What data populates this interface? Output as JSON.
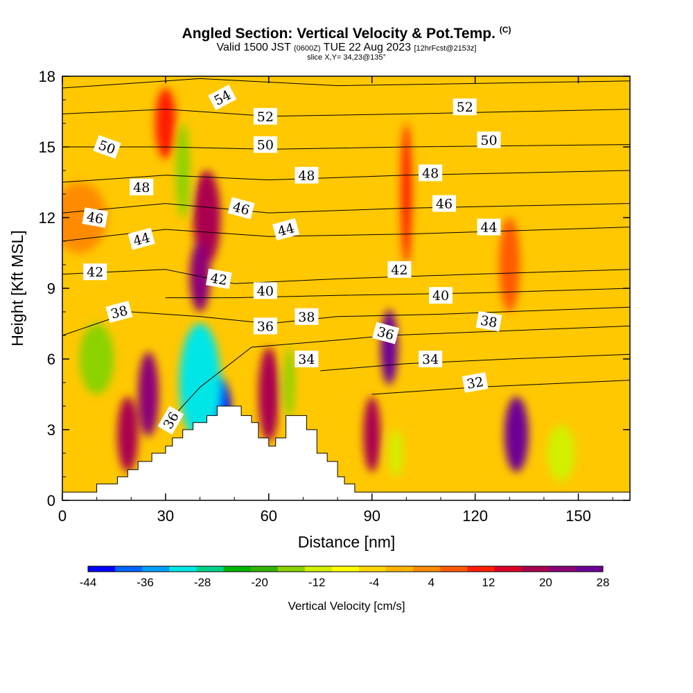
{
  "chart_data": {
    "type": "heatmap",
    "title": "Angled Section: Vertical Velocity & Pot.Temp.",
    "title_unit": "(C)",
    "subtitle_pre": "Valid 1500 JST",
    "subtitle_z": "(0600Z)",
    "subtitle_post": "TUE 22 Aug 2023",
    "subtitle_fcst": "[12hrFcst@2153z]",
    "slice": "slice X,Y= 34,23@135°",
    "xlabel": "Distance [nm]",
    "ylabel": "Height [Kft MSL]",
    "xlim": [
      0,
      165
    ],
    "ylim": [
      0,
      18
    ],
    "x_ticks": [
      "0",
      "30",
      "60",
      "90",
      "120",
      "150"
    ],
    "y_ticks": [
      "0",
      "3",
      "6",
      "9",
      "12",
      "15",
      "18"
    ],
    "colorbar": {
      "label": "Vertical Velocity [cm/s]",
      "ticks": [
        "-44",
        "-36",
        "-28",
        "-20",
        "-12",
        "-4",
        "4",
        "12",
        "20",
        "28"
      ],
      "colors": [
        "#0000ff",
        "#0064ff",
        "#00a0ff",
        "#00e6e6",
        "#00d28c",
        "#00b400",
        "#32b400",
        "#8cd200",
        "#d2f000",
        "#ffff00",
        "#ffd700",
        "#ffb400",
        "#ff8c00",
        "#ff5a00",
        "#ff1e00",
        "#dc0028",
        "#aa0050",
        "#8c0078",
        "#6e0096"
      ]
    },
    "terrain_profile": [
      [
        0,
        0.35
      ],
      [
        10,
        0.35
      ],
      [
        10,
        0.7
      ],
      [
        16,
        0.7
      ],
      [
        16,
        1
      ],
      [
        19,
        1
      ],
      [
        19,
        1.3
      ],
      [
        22,
        1.3
      ],
      [
        22,
        1.65
      ],
      [
        26,
        1.65
      ],
      [
        26,
        2
      ],
      [
        30,
        2
      ],
      [
        30,
        2.3
      ],
      [
        32,
        2.3
      ],
      [
        32,
        2.65
      ],
      [
        35,
        2.65
      ],
      [
        35,
        3
      ],
      [
        38,
        3
      ],
      [
        38,
        3.3
      ],
      [
        42,
        3.3
      ],
      [
        42,
        3.6
      ],
      [
        45,
        3.6
      ],
      [
        45,
        4
      ],
      [
        52,
        4
      ],
      [
        52,
        3.6
      ],
      [
        55,
        3.6
      ],
      [
        55,
        3.3
      ],
      [
        57,
        3.3
      ],
      [
        57,
        2.65
      ],
      [
        60,
        2.65
      ],
      [
        60,
        2.3
      ],
      [
        62,
        2.3
      ],
      [
        62,
        2.65
      ],
      [
        65,
        2.65
      ],
      [
        65,
        3.6
      ],
      [
        71,
        3.6
      ],
      [
        71,
        3
      ],
      [
        74,
        3
      ],
      [
        74,
        2
      ],
      [
        77,
        2
      ],
      [
        77,
        1.65
      ],
      [
        80,
        1.65
      ],
      [
        80,
        1
      ],
      [
        82,
        1
      ],
      [
        82,
        0.7
      ],
      [
        85,
        0.7
      ],
      [
        85,
        0.35
      ],
      [
        165,
        0.35
      ]
    ],
    "velocity_cells": [
      {
        "x": 45,
        "y": 3.8,
        "sx": 4,
        "sy": 1.5,
        "v": -42
      },
      {
        "x": 40,
        "y": 5,
        "sx": 6,
        "sy": 2.5,
        "v": -30
      },
      {
        "x": 42,
        "y": 12,
        "sx": 4,
        "sy": 2,
        "v": 20
      },
      {
        "x": 40,
        "y": 9.5,
        "sx": 3,
        "sy": 1.5,
        "v": 24
      },
      {
        "x": 25,
        "y": 4.5,
        "sx": 3,
        "sy": 1.8,
        "v": 24
      },
      {
        "x": 19,
        "y": 2.8,
        "sx": 3,
        "sy": 1.6,
        "v": 22
      },
      {
        "x": 60,
        "y": 4.5,
        "sx": 3,
        "sy": 2,
        "v": 20
      },
      {
        "x": 90,
        "y": 2.8,
        "sx": 2.5,
        "sy": 1.6,
        "v": 20
      },
      {
        "x": 95,
        "y": 6.5,
        "sx": 2.5,
        "sy": 1.6,
        "v": 28
      },
      {
        "x": 132,
        "y": 2.8,
        "sx": 3.5,
        "sy": 1.6,
        "v": 28
      },
      {
        "x": 100,
        "y": 13,
        "sx": 1.5,
        "sy": 3,
        "v": 14
      },
      {
        "x": 30,
        "y": 16,
        "sx": 3,
        "sy": 1.5,
        "v": 14
      },
      {
        "x": 35,
        "y": 14,
        "sx": 2,
        "sy": 2,
        "v": -14
      },
      {
        "x": 10,
        "y": 6,
        "sx": 5,
        "sy": 1.5,
        "v": -14
      },
      {
        "x": 66,
        "y": 5,
        "sx": 1.5,
        "sy": 1.5,
        "v": -16
      },
      {
        "x": 97,
        "y": 2,
        "sx": 2,
        "sy": 1,
        "v": -12
      },
      {
        "x": 130,
        "y": 10,
        "sx": 3,
        "sy": 2,
        "v": 10
      },
      {
        "x": 5,
        "y": 12,
        "sx": 8,
        "sy": 1.5,
        "v": 6
      },
      {
        "x": 145,
        "y": 2,
        "sx": 4,
        "sy": 1.2,
        "v": -10
      }
    ],
    "isentropes": [
      {
        "label": "32",
        "points": [
          [
            90,
            4.5
          ],
          [
            120,
            4.8
          ],
          [
            165,
            5.1
          ]
        ]
      },
      {
        "label": "34",
        "points": [
          [
            75,
            5.5
          ],
          [
            100,
            5.8
          ],
          [
            130,
            6
          ],
          [
            165,
            6.2
          ]
        ]
      },
      {
        "label": "36",
        "points": [
          [
            30,
            3.2
          ],
          [
            40,
            4.8
          ],
          [
            55,
            6.5
          ],
          [
            80,
            6.8
          ],
          [
            95,
            7
          ],
          [
            130,
            7.2
          ],
          [
            165,
            7.4
          ]
        ]
      },
      {
        "label": "38",
        "points": [
          [
            0,
            7
          ],
          [
            20,
            8
          ],
          [
            40,
            7.8
          ],
          [
            60,
            7.5
          ],
          [
            80,
            7.8
          ],
          [
            110,
            7.9
          ],
          [
            165,
            8.2
          ]
        ]
      },
      {
        "label": "40",
        "points": [
          [
            30,
            8.6
          ],
          [
            50,
            8.6
          ],
          [
            80,
            8.7
          ],
          [
            120,
            8.8
          ],
          [
            165,
            9
          ]
        ]
      },
      {
        "label": "42",
        "points": [
          [
            0,
            9.6
          ],
          [
            30,
            9.8
          ],
          [
            50,
            9.2
          ],
          [
            80,
            9.4
          ],
          [
            120,
            9.6
          ],
          [
            165,
            9.8
          ]
        ]
      },
      {
        "label": "44",
        "points": [
          [
            0,
            11
          ],
          [
            30,
            11.5
          ],
          [
            60,
            11.2
          ],
          [
            100,
            11.3
          ],
          [
            165,
            11.6
          ]
        ]
      },
      {
        "label": "46",
        "points": [
          [
            0,
            12.2
          ],
          [
            30,
            12.6
          ],
          [
            60,
            12.2
          ],
          [
            100,
            12.4
          ],
          [
            165,
            12.6
          ]
        ]
      },
      {
        "label": "48",
        "points": [
          [
            0,
            13.5
          ],
          [
            30,
            13.8
          ],
          [
            60,
            13.6
          ],
          [
            100,
            13.8
          ],
          [
            165,
            14
          ]
        ]
      },
      {
        "label": "50",
        "points": [
          [
            0,
            15
          ],
          [
            30,
            15
          ],
          [
            60,
            14.9
          ],
          [
            100,
            15
          ],
          [
            165,
            15.1
          ]
        ]
      },
      {
        "label": "52",
        "points": [
          [
            0,
            16.4
          ],
          [
            30,
            16.6
          ],
          [
            60,
            16.3
          ],
          [
            100,
            16.4
          ],
          [
            165,
            16.6
          ]
        ]
      },
      {
        "label": "54",
        "points": [
          [
            0,
            17.5
          ],
          [
            40,
            17.9
          ],
          [
            80,
            17.6
          ],
          [
            165,
            17.8
          ]
        ]
      }
    ],
    "contour_labels": [
      {
        "text": "54",
        "x": 46.5,
        "y": 17.1,
        "rot": -28
      },
      {
        "text": "52",
        "x": 59,
        "y": 16.3,
        "rot": 0
      },
      {
        "text": "52",
        "x": 117,
        "y": 16.7,
        "rot": 0
      },
      {
        "text": "50",
        "x": 13,
        "y": 15,
        "rot": 20
      },
      {
        "text": "50",
        "x": 59,
        "y": 15.1,
        "rot": 0
      },
      {
        "text": "50",
        "x": 124,
        "y": 15.3,
        "rot": 0
      },
      {
        "text": "48",
        "x": 23,
        "y": 13.3,
        "rot": 0
      },
      {
        "text": "48",
        "x": 71,
        "y": 13.8,
        "rot": 0
      },
      {
        "text": "48",
        "x": 107,
        "y": 13.9,
        "rot": 0
      },
      {
        "text": "46",
        "x": 9.5,
        "y": 12,
        "rot": 10
      },
      {
        "text": "46",
        "x": 52,
        "y": 12.4,
        "rot": 15
      },
      {
        "text": "46",
        "x": 111,
        "y": 12.6,
        "rot": 0
      },
      {
        "text": "44",
        "x": 23,
        "y": 11.1,
        "rot": -15
      },
      {
        "text": "44",
        "x": 65,
        "y": 11.5,
        "rot": -15
      },
      {
        "text": "44",
        "x": 124,
        "y": 11.6,
        "rot": 0
      },
      {
        "text": "42",
        "x": 9.5,
        "y": 9.7,
        "rot": 0
      },
      {
        "text": "42",
        "x": 45.5,
        "y": 9.4,
        "rot": 10
      },
      {
        "text": "42",
        "x": 98,
        "y": 9.8,
        "rot": 0
      },
      {
        "text": "40",
        "x": 59,
        "y": 8.9,
        "rot": 0
      },
      {
        "text": "40",
        "x": 110,
        "y": 8.7,
        "rot": 0
      },
      {
        "text": "38",
        "x": 16.5,
        "y": 8,
        "rot": -15
      },
      {
        "text": "38",
        "x": 71,
        "y": 7.8,
        "rot": 0
      },
      {
        "text": "38",
        "x": 124,
        "y": 7.6,
        "rot": 10
      },
      {
        "text": "36",
        "x": 59,
        "y": 7.4,
        "rot": 0
      },
      {
        "text": "36",
        "x": 94,
        "y": 7.1,
        "rot": 15
      },
      {
        "text": "36",
        "x": 31.5,
        "y": 3.4,
        "rot": -60
      },
      {
        "text": "34",
        "x": 71,
        "y": 6,
        "rot": 0
      },
      {
        "text": "34",
        "x": 107,
        "y": 6,
        "rot": 0
      },
      {
        "text": "32",
        "x": 120,
        "y": 5,
        "rot": -10
      }
    ]
  }
}
